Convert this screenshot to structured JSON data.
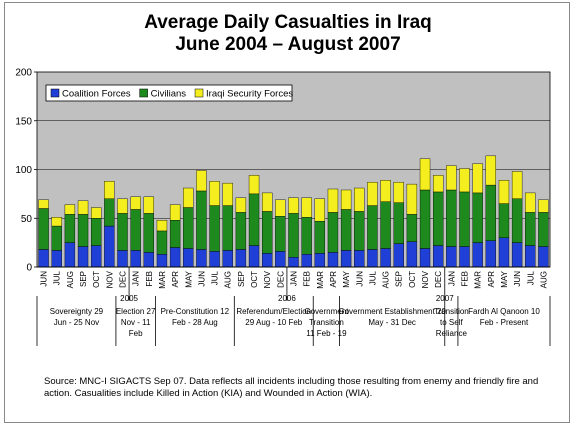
{
  "title_line1": "Average Daily Casualties in Iraq",
  "title_line2": "June 2004 – August 2007",
  "source_note": "Source:  MNC-I SIGACTS Sep 07.  Data reflects all incidents including those resulting from enemy and friendly fire and action.  Casualities include Killed in Action (KIA) and Wounded in Action (WIA).",
  "chart_data": {
    "type": "bar",
    "stacked": true,
    "title": "Average Daily Casualties in Iraq June 2004 – August 2007",
    "ylim": [
      0,
      200
    ],
    "yticks": [
      0,
      50,
      100,
      150,
      200
    ],
    "grid": true,
    "legend_position": "top-left",
    "plot_background": "#c0c0c0",
    "categories": [
      "JUN",
      "JUL",
      "AUG",
      "SEP",
      "OCT",
      "NOV",
      "DEC",
      "JAN",
      "FEB",
      "MAR",
      "APR",
      "MAY",
      "JUN",
      "JUL",
      "AUG",
      "SEP",
      "OCT",
      "NOV",
      "DEC",
      "JAN",
      "FEB",
      "MAR",
      "APR",
      "MAY",
      "JUN",
      "JUL",
      "AUG",
      "SEP",
      "OCT",
      "NOV",
      "DEC",
      "JAN",
      "FEB",
      "MAR",
      "APR",
      "MAY",
      "JUN",
      "JUL",
      "AUG"
    ],
    "year_labels": [
      {
        "label": "2005",
        "index": 7
      },
      {
        "label": "2006",
        "index": 19
      },
      {
        "label": "2007",
        "index": 31
      }
    ],
    "series": [
      {
        "name": "Coalition Forces",
        "color": "#1f3fd6",
        "values": [
          18,
          17,
          25,
          21,
          22,
          42,
          17,
          17,
          15,
          13,
          20,
          19,
          18,
          16,
          17,
          18,
          22,
          14,
          16,
          10,
          13,
          14,
          15,
          17,
          17,
          18,
          19,
          24,
          26,
          19,
          22,
          21,
          21,
          25,
          27,
          30,
          25,
          22,
          21
        ]
      },
      {
        "name": "Civilians",
        "color": "#1e8a1e",
        "values": [
          42,
          25,
          29,
          33,
          28,
          28,
          38,
          42,
          40,
          24,
          28,
          42,
          60,
          47,
          46,
          38,
          53,
          43,
          36,
          45,
          38,
          33,
          41,
          42,
          40,
          45,
          48,
          42,
          28,
          60,
          55,
          58,
          56,
          51,
          57,
          35,
          45,
          34,
          35
        ]
      },
      {
        "name": "Iraqi Security Forces",
        "color": "#f5ee1e",
        "values": [
          9,
          9,
          10,
          14,
          11,
          18,
          15,
          13,
          17,
          11,
          16,
          20,
          21,
          25,
          23,
          15,
          19,
          19,
          17,
          16,
          20,
          23,
          24,
          20,
          24,
          24,
          22,
          21,
          31,
          32,
          17,
          25,
          24,
          30,
          30,
          24,
          28,
          20,
          13
        ]
      }
    ],
    "period_labels": [
      {
        "lines": [
          "Sovereignty 29",
          "Jun - 25 Nov"
        ],
        "start": 0,
        "end": 5
      },
      {
        "lines": [
          "Election 27",
          "Nov - 11",
          "Feb"
        ],
        "start": 6,
        "end": 8
      },
      {
        "lines": [
          "Pre-Constitution 12",
          "Feb - 28 Aug"
        ],
        "start": 9,
        "end": 14
      },
      {
        "lines": [
          "Referendum/Election",
          "29 Aug - 10 Feb"
        ],
        "start": 15,
        "end": 20
      },
      {
        "lines": [
          "Government",
          "Transition",
          "11 Feb - 19"
        ],
        "start": 21,
        "end": 22
      },
      {
        "lines": [
          "Government Establishment 20",
          "May - 31 Dec"
        ],
        "start": 23,
        "end": 30
      },
      {
        "lines": [
          "Transition",
          "to Self",
          "Reliance"
        ],
        "start": 31,
        "end": 31
      },
      {
        "lines": [
          "Fardh Al Qanoon 10",
          "Feb - Present"
        ],
        "start": 32,
        "end": 38
      }
    ]
  }
}
